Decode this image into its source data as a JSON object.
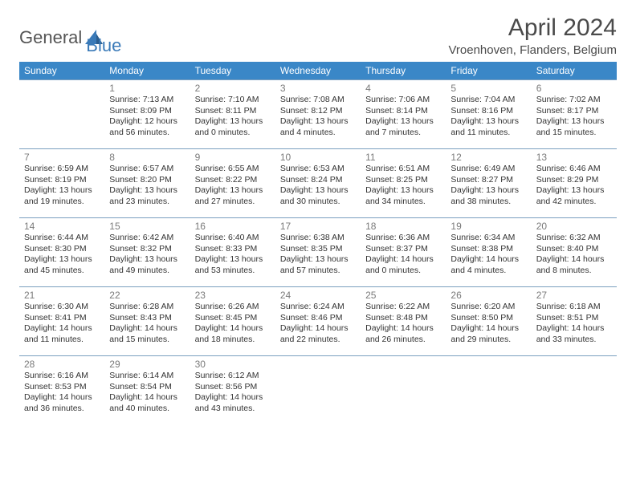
{
  "logo": {
    "general": "General",
    "blue": "Blue"
  },
  "title": "April 2024",
  "location": "Vroenhoven, Flanders, Belgium",
  "colors": {
    "header_bg": "#3a87c7",
    "header_text": "#ffffff",
    "cell_border": "#7a9fbf",
    "daynum": "#7a7a7a",
    "body_text": "#333333",
    "logo_gray": "#555555",
    "logo_blue": "#3a7ab8"
  },
  "day_headers": [
    "Sunday",
    "Monday",
    "Tuesday",
    "Wednesday",
    "Thursday",
    "Friday",
    "Saturday"
  ],
  "weeks": [
    [
      null,
      {
        "n": "1",
        "sr": "Sunrise: 7:13 AM",
        "ss": "Sunset: 8:09 PM",
        "d1": "Daylight: 12 hours",
        "d2": "and 56 minutes."
      },
      {
        "n": "2",
        "sr": "Sunrise: 7:10 AM",
        "ss": "Sunset: 8:11 PM",
        "d1": "Daylight: 13 hours",
        "d2": "and 0 minutes."
      },
      {
        "n": "3",
        "sr": "Sunrise: 7:08 AM",
        "ss": "Sunset: 8:12 PM",
        "d1": "Daylight: 13 hours",
        "d2": "and 4 minutes."
      },
      {
        "n": "4",
        "sr": "Sunrise: 7:06 AM",
        "ss": "Sunset: 8:14 PM",
        "d1": "Daylight: 13 hours",
        "d2": "and 7 minutes."
      },
      {
        "n": "5",
        "sr": "Sunrise: 7:04 AM",
        "ss": "Sunset: 8:16 PM",
        "d1": "Daylight: 13 hours",
        "d2": "and 11 minutes."
      },
      {
        "n": "6",
        "sr": "Sunrise: 7:02 AM",
        "ss": "Sunset: 8:17 PM",
        "d1": "Daylight: 13 hours",
        "d2": "and 15 minutes."
      }
    ],
    [
      {
        "n": "7",
        "sr": "Sunrise: 6:59 AM",
        "ss": "Sunset: 8:19 PM",
        "d1": "Daylight: 13 hours",
        "d2": "and 19 minutes."
      },
      {
        "n": "8",
        "sr": "Sunrise: 6:57 AM",
        "ss": "Sunset: 8:20 PM",
        "d1": "Daylight: 13 hours",
        "d2": "and 23 minutes."
      },
      {
        "n": "9",
        "sr": "Sunrise: 6:55 AM",
        "ss": "Sunset: 8:22 PM",
        "d1": "Daylight: 13 hours",
        "d2": "and 27 minutes."
      },
      {
        "n": "10",
        "sr": "Sunrise: 6:53 AM",
        "ss": "Sunset: 8:24 PM",
        "d1": "Daylight: 13 hours",
        "d2": "and 30 minutes."
      },
      {
        "n": "11",
        "sr": "Sunrise: 6:51 AM",
        "ss": "Sunset: 8:25 PM",
        "d1": "Daylight: 13 hours",
        "d2": "and 34 minutes."
      },
      {
        "n": "12",
        "sr": "Sunrise: 6:49 AM",
        "ss": "Sunset: 8:27 PM",
        "d1": "Daylight: 13 hours",
        "d2": "and 38 minutes."
      },
      {
        "n": "13",
        "sr": "Sunrise: 6:46 AM",
        "ss": "Sunset: 8:29 PM",
        "d1": "Daylight: 13 hours",
        "d2": "and 42 minutes."
      }
    ],
    [
      {
        "n": "14",
        "sr": "Sunrise: 6:44 AM",
        "ss": "Sunset: 8:30 PM",
        "d1": "Daylight: 13 hours",
        "d2": "and 45 minutes."
      },
      {
        "n": "15",
        "sr": "Sunrise: 6:42 AM",
        "ss": "Sunset: 8:32 PM",
        "d1": "Daylight: 13 hours",
        "d2": "and 49 minutes."
      },
      {
        "n": "16",
        "sr": "Sunrise: 6:40 AM",
        "ss": "Sunset: 8:33 PM",
        "d1": "Daylight: 13 hours",
        "d2": "and 53 minutes."
      },
      {
        "n": "17",
        "sr": "Sunrise: 6:38 AM",
        "ss": "Sunset: 8:35 PM",
        "d1": "Daylight: 13 hours",
        "d2": "and 57 minutes."
      },
      {
        "n": "18",
        "sr": "Sunrise: 6:36 AM",
        "ss": "Sunset: 8:37 PM",
        "d1": "Daylight: 14 hours",
        "d2": "and 0 minutes."
      },
      {
        "n": "19",
        "sr": "Sunrise: 6:34 AM",
        "ss": "Sunset: 8:38 PM",
        "d1": "Daylight: 14 hours",
        "d2": "and 4 minutes."
      },
      {
        "n": "20",
        "sr": "Sunrise: 6:32 AM",
        "ss": "Sunset: 8:40 PM",
        "d1": "Daylight: 14 hours",
        "d2": "and 8 minutes."
      }
    ],
    [
      {
        "n": "21",
        "sr": "Sunrise: 6:30 AM",
        "ss": "Sunset: 8:41 PM",
        "d1": "Daylight: 14 hours",
        "d2": "and 11 minutes."
      },
      {
        "n": "22",
        "sr": "Sunrise: 6:28 AM",
        "ss": "Sunset: 8:43 PM",
        "d1": "Daylight: 14 hours",
        "d2": "and 15 minutes."
      },
      {
        "n": "23",
        "sr": "Sunrise: 6:26 AM",
        "ss": "Sunset: 8:45 PM",
        "d1": "Daylight: 14 hours",
        "d2": "and 18 minutes."
      },
      {
        "n": "24",
        "sr": "Sunrise: 6:24 AM",
        "ss": "Sunset: 8:46 PM",
        "d1": "Daylight: 14 hours",
        "d2": "and 22 minutes."
      },
      {
        "n": "25",
        "sr": "Sunrise: 6:22 AM",
        "ss": "Sunset: 8:48 PM",
        "d1": "Daylight: 14 hours",
        "d2": "and 26 minutes."
      },
      {
        "n": "26",
        "sr": "Sunrise: 6:20 AM",
        "ss": "Sunset: 8:50 PM",
        "d1": "Daylight: 14 hours",
        "d2": "and 29 minutes."
      },
      {
        "n": "27",
        "sr": "Sunrise: 6:18 AM",
        "ss": "Sunset: 8:51 PM",
        "d1": "Daylight: 14 hours",
        "d2": "and 33 minutes."
      }
    ],
    [
      {
        "n": "28",
        "sr": "Sunrise: 6:16 AM",
        "ss": "Sunset: 8:53 PM",
        "d1": "Daylight: 14 hours",
        "d2": "and 36 minutes."
      },
      {
        "n": "29",
        "sr": "Sunrise: 6:14 AM",
        "ss": "Sunset: 8:54 PM",
        "d1": "Daylight: 14 hours",
        "d2": "and 40 minutes."
      },
      {
        "n": "30",
        "sr": "Sunrise: 6:12 AM",
        "ss": "Sunset: 8:56 PM",
        "d1": "Daylight: 14 hours",
        "d2": "and 43 minutes."
      },
      null,
      null,
      null,
      null
    ]
  ]
}
